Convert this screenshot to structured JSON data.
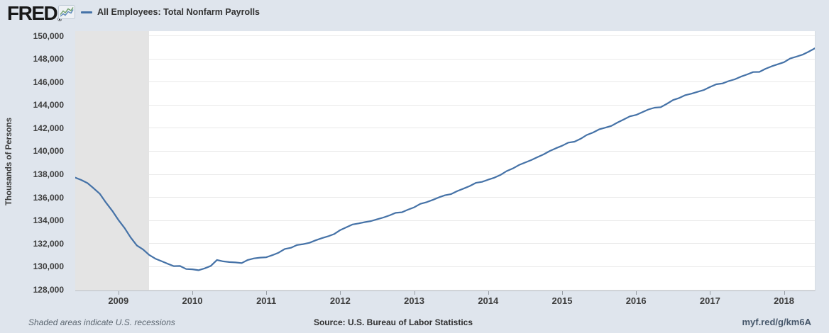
{
  "header": {
    "logo": "FRED",
    "registered": "®",
    "legend": {
      "series_label": "All Employees: Total Nonfarm Payrolls"
    }
  },
  "y_axis": {
    "title": "Thousands of Persons",
    "ticks": [
      "150,000",
      "148,000",
      "146,000",
      "144,000",
      "142,000",
      "140,000",
      "138,000",
      "136,000",
      "134,000",
      "132,000",
      "130,000",
      "128,000"
    ]
  },
  "x_axis": {
    "ticks": [
      "2009",
      "2010",
      "2011",
      "2012",
      "2013",
      "2014",
      "2015",
      "2016",
      "2017",
      "2018"
    ]
  },
  "footer": {
    "note": "Shaded areas indicate U.S. recessions",
    "source": "Source: U.S. Bureau of Labor Statistics",
    "short_url": "myf.red/g/km6A"
  },
  "colors": {
    "page_bg": "#dfe5ed",
    "plot_bg": "#ffffff",
    "line": "#4572a7",
    "recession_band": "#e4e4e4",
    "gridline": "#e9e9e9",
    "axis_text": "#3d3d3d"
  },
  "chart_data": {
    "type": "line",
    "title": "All Employees: Total Nonfarm Payrolls",
    "ylabel": "Thousands of Persons",
    "frequency": "monthly",
    "x_start": "2008-06",
    "x_end": "2018-06",
    "ylim": [
      128000,
      150000
    ],
    "y_tick_values": [
      150000,
      148000,
      146000,
      144000,
      142000,
      140000,
      138000,
      136000,
      134000,
      132000,
      130000,
      128000
    ],
    "x_tick_years": [
      2009,
      2010,
      2011,
      2012,
      2013,
      2014,
      2015,
      2016,
      2017,
      2018
    ],
    "grid": "horizontal-only",
    "legend_position": "top-left",
    "recession_bands": [
      {
        "start": "2008-06",
        "end": "2009-06"
      }
    ],
    "series": [
      {
        "name": "All Employees: Total Nonfarm Payrolls",
        "color": "#4572a7",
        "values": [
          137717,
          137507,
          137237,
          136784,
          136310,
          135545,
          134846,
          134053,
          133352,
          132528,
          131844,
          131491,
          131022,
          130695,
          130481,
          130254,
          130050,
          130059,
          129796,
          129775,
          129695,
          129851,
          130068,
          130584,
          130463,
          130402,
          130368,
          130315,
          130586,
          130717,
          130788,
          130815,
          131003,
          131215,
          131537,
          131639,
          131878,
          131949,
          132071,
          132285,
          132465,
          132629,
          132825,
          133172,
          133414,
          133657,
          133753,
          133863,
          133951,
          134112,
          134261,
          134442,
          134667,
          134716,
          134943,
          135141,
          135441,
          135582,
          135782,
          136000,
          136188,
          136288,
          136556,
          136764,
          136986,
          137261,
          137345,
          137539,
          137707,
          137947,
          138276,
          138503,
          138809,
          139022,
          139235,
          139486,
          139729,
          140019,
          140263,
          140477,
          140743,
          140827,
          141075,
          141409,
          141617,
          141895,
          142043,
          142192,
          142491,
          142753,
          143025,
          143143,
          143380,
          143617,
          143770,
          143813,
          144110,
          144435,
          144611,
          144860,
          144984,
          145148,
          145303,
          145562,
          145794,
          145867,
          146074,
          146229,
          146459,
          146648,
          146856,
          146870,
          147141,
          147357,
          147532,
          147708,
          148032,
          148187,
          148362,
          148617,
          148912
        ]
      }
    ]
  }
}
